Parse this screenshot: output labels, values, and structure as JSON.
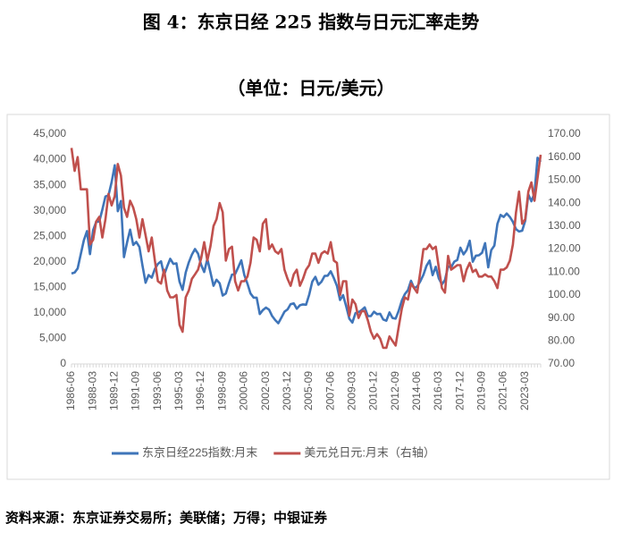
{
  "chart_data": {
    "type": "line",
    "title": "图 4：东京日经 225 指数与日元汇率走势",
    "subtitle": "（单位：日元/美元）",
    "source": "资料来源：东京证券交易所；美联储；万得；中银证券",
    "categories": [
      "1986-06",
      null,
      null,
      null,
      null,
      null,
      null,
      "1988-03",
      null,
      null,
      null,
      null,
      null,
      null,
      "1989-12",
      null,
      null,
      null,
      null,
      null,
      null,
      "1991-09",
      null,
      null,
      null,
      null,
      null,
      null,
      "1993-06",
      null,
      null,
      null,
      null,
      null,
      null,
      "1995-03",
      null,
      null,
      null,
      null,
      null,
      null,
      "1996-12",
      null,
      null,
      null,
      null,
      null,
      null,
      "1998-09",
      null,
      null,
      null,
      null,
      null,
      null,
      "2000-06",
      null,
      null,
      null,
      null,
      null,
      null,
      "2002-03",
      null,
      null,
      null,
      null,
      null,
      null,
      "2003-12",
      null,
      null,
      null,
      null,
      null,
      null,
      "2005-09",
      null,
      null,
      null,
      null,
      null,
      null,
      "2007-06",
      null,
      null,
      null,
      null,
      null,
      null,
      "2009-03",
      null,
      null,
      null,
      null,
      null,
      null,
      "2010-12",
      null,
      null,
      null,
      null,
      null,
      null,
      "2012-09",
      null,
      null,
      null,
      null,
      null,
      null,
      "2014-06",
      null,
      null,
      null,
      null,
      null,
      null,
      "2016-03",
      null,
      null,
      null,
      null,
      null,
      null,
      "2017-12",
      null,
      null,
      null,
      null,
      null,
      null,
      "2019-09",
      null,
      null,
      null,
      null,
      null,
      null,
      "2021-06",
      null,
      null,
      null,
      null,
      null,
      null,
      "2023-03",
      null,
      null,
      null,
      null,
      null
    ],
    "series": [
      {
        "name": "东京日经225指数:月末",
        "color": "#3f75b9",
        "axis": "y",
        "values": [
          17700,
          17900,
          18700,
          21500,
          24200,
          26000,
          21500,
          26200,
          27800,
          27900,
          30200,
          32800,
          33000,
          35600,
          38900,
          29900,
          31900,
          20900,
          23800,
          26300,
          23300,
          23900,
          22900,
          19300,
          15900,
          17400,
          16900,
          18600,
          19600,
          20100,
          17400,
          19100,
          20600,
          19600,
          19700,
          16100,
          14500,
          17900,
          19900,
          21400,
          22500,
          21600,
          19400,
          18000,
          20600,
          18000,
          15300,
          16500,
          15800,
          13400,
          13800,
          15800,
          17500,
          17600,
          18900,
          20300,
          17400,
          15700,
          13800,
          12999,
          12969,
          9774,
          10543,
          11024,
          10621,
          9383,
          8579,
          7973,
          9083,
          10219,
          10677,
          11715,
          11858,
          10824,
          11489,
          11668,
          11584,
          13574,
          16111,
          17059,
          15505,
          16128,
          17226,
          17288,
          18138,
          16786,
          15308,
          12526,
          13481,
          11260,
          8860,
          8110,
          9958,
          10133,
          10546,
          11090,
          9383,
          9369,
          10229,
          9755,
          9816,
          8700,
          8455,
          10084,
          9007,
          8870,
          10395,
          12398,
          13677,
          14456,
          16291,
          14828,
          15162,
          16174,
          17451,
          19207,
          20236,
          17388,
          19034,
          16759,
          15576,
          16450,
          19114,
          18909,
          20033,
          20356,
          22765,
          21454,
          22305,
          24120,
          20015,
          21206,
          21276,
          21756,
          23657,
          18917,
          22288,
          23185,
          27444,
          29179,
          28792,
          29453,
          28792,
          27821,
          26393,
          25937,
          26095,
          28041,
          33189,
          31858,
          33464,
          40369,
          39583
        ]
      },
      {
        "name": "美元兑日元:月末（右轴）",
        "color": "#c0504d",
        "axis": "y2",
        "values": [
          164,
          154,
          160,
          146,
          146,
          146,
          122,
          124,
          132,
          134,
          125,
          133,
          144,
          139,
          143,
          157,
          152,
          138,
          134,
          141,
          138,
          133,
          125,
          133,
          126,
          119,
          125,
          115,
          106,
          105,
          111,
          102,
          99,
          99,
          100,
          87,
          84,
          99,
          102,
          107,
          109,
          111,
          116,
          123,
          115,
          121,
          130,
          133,
          140,
          136,
          115,
          120,
          121,
          106,
          102,
          106,
          106,
          108,
          114,
          125,
          124,
          119,
          131,
          133,
          120,
          122,
          119,
          118,
          120,
          111,
          107,
          104,
          109,
          111,
          104,
          107,
          111,
          113,
          118,
          118,
          114,
          118,
          119,
          118,
          123,
          115,
          114,
          100,
          106,
          106,
          91,
          98,
          96,
          90,
          93,
          93,
          89,
          84,
          81,
          83,
          81,
          77,
          77,
          82,
          80,
          78,
          86,
          94,
          99,
          98,
          105,
          103,
          101,
          110,
          120,
          120,
          122,
          120,
          121,
          112,
          103,
          101,
          117,
          111,
          112,
          113,
          113,
          106,
          111,
          114,
          110,
          111,
          108,
          108,
          109,
          108,
          108,
          106,
          103,
          111,
          111,
          112,
          115,
          122,
          136,
          145,
          131,
          133,
          145,
          149,
          141,
          151,
          161
        ]
      }
    ],
    "ylim": [
      0,
      45000
    ],
    "yticks": [
      0,
      {
        "value": 5000,
        "label": "5,000"
      },
      {
        "value": 10000,
        "label": "10,000"
      },
      {
        "value": 15000,
        "label": "15,000"
      },
      {
        "value": 20000,
        "label": "20,000"
      },
      {
        "value": 25000,
        "label": "25,000"
      },
      {
        "value": 30000,
        "label": "30,000"
      },
      {
        "value": 35000,
        "label": "35,000"
      },
      {
        "value": 40000,
        "label": "40,000"
      },
      {
        "value": 45000,
        "label": "45,000"
      }
    ],
    "y2lim": [
      70,
      170
    ],
    "y2ticks": [
      {
        "value": 70,
        "label": "70.00"
      },
      {
        "value": 80,
        "label": "80.00"
      },
      {
        "value": 90,
        "label": "90.00"
      },
      {
        "value": 100,
        "label": "100.00"
      },
      {
        "value": 110,
        "label": "110.00"
      },
      {
        "value": 120,
        "label": "120.00"
      },
      {
        "value": 130,
        "label": "130.00"
      },
      {
        "value": 140,
        "label": "140.00"
      },
      {
        "value": 150,
        "label": "150.00"
      },
      {
        "value": 160,
        "label": "160.00"
      },
      {
        "value": 170,
        "label": "170.00"
      }
    ],
    "grid": false
  }
}
